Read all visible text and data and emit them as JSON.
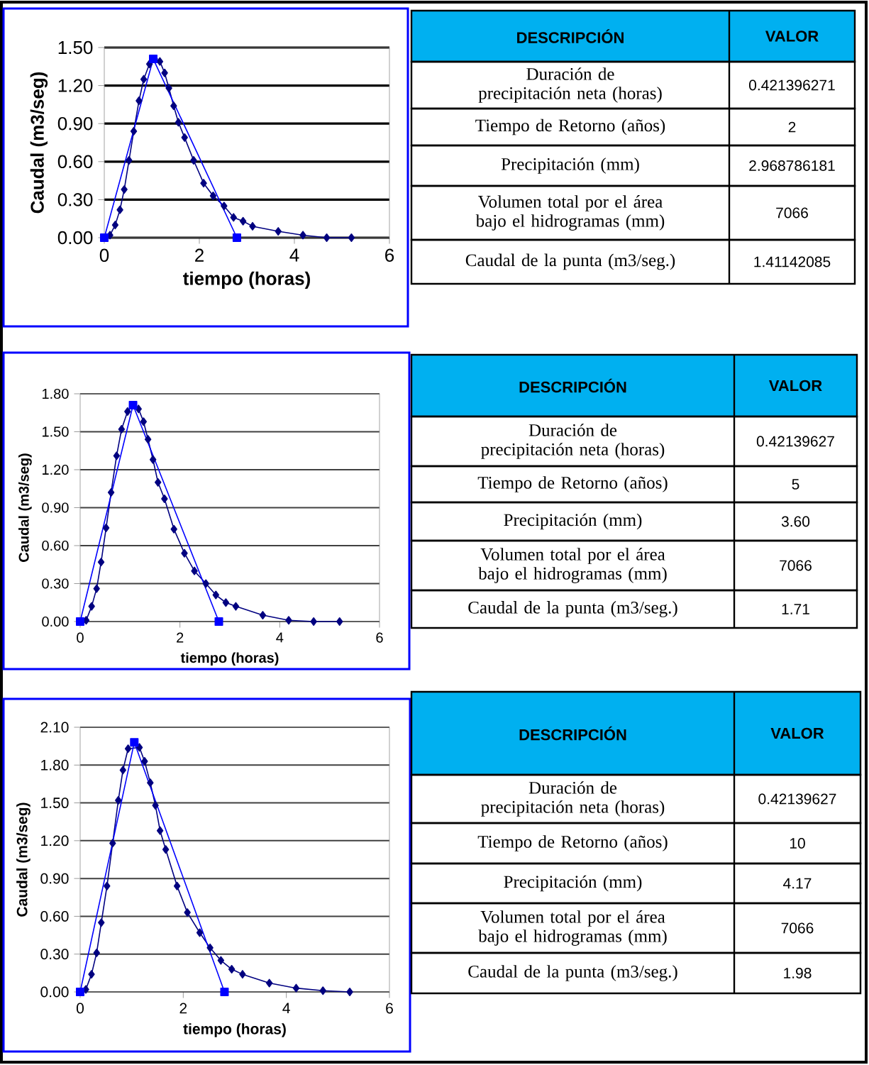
{
  "chart_data": [
    {
      "type": "line",
      "xlabel": "tiempo (horas)",
      "ylabel": "Caudal (m3/seg)",
      "xlim": [
        0,
        6
      ],
      "ylim": [
        0,
        1.5
      ],
      "xticks": [
        0,
        2,
        4,
        6
      ],
      "yticks": [
        {
          "value": 0,
          "label": "0.00"
        },
        {
          "value": 0.3,
          "label": "0.30"
        },
        {
          "value": 0.6,
          "label": "0.60"
        },
        {
          "value": 0.9,
          "label": "0.90"
        },
        {
          "value": 1.2,
          "label": "1.20"
        },
        {
          "value": 1.5,
          "label": "1.50"
        }
      ],
      "grid": "y",
      "series": [
        {
          "color": "#000080",
          "marker": "diamond",
          "x": [
            0,
            0.12,
            0.23,
            0.33,
            0.42,
            0.52,
            0.62,
            0.73,
            0.83,
            0.95,
            1.06,
            1.17,
            1.27,
            1.36,
            1.46,
            1.56,
            1.69,
            1.88,
            2.09,
            2.29,
            2.52,
            2.72,
            2.92,
            3.12,
            3.66,
            4.18,
            4.68,
            5.2
          ],
          "values": [
            0,
            0.02,
            0.1,
            0.22,
            0.38,
            0.61,
            0.84,
            1.08,
            1.25,
            1.37,
            1.41,
            1.39,
            1.3,
            1.18,
            1.04,
            0.91,
            0.79,
            0.61,
            0.43,
            0.33,
            0.25,
            0.16,
            0.13,
            0.09,
            0.05,
            0.02,
            0,
            0
          ]
        },
        {
          "color": "#0000ff",
          "marker": "square",
          "x": [
            0,
            1.03,
            2.79
          ],
          "values": [
            0,
            1.41,
            0
          ]
        }
      ]
    },
    {
      "type": "other",
      "color": "#00b0f0",
      "annotations": [
        "DESCRIPCIÓN",
        "VALOR"
      ],
      "categories": [
        "Duración de precipitación neta (horas)",
        "Tiempo de Retorno (años)",
        "Precipitación (mm)",
        "Volumen total  por el área bajo el hidrogramas (mm)",
        "Caudal de la punta (m3/seg.)"
      ],
      "value_labels": [
        "0.421396271",
        "2",
        "2.968786181",
        "7066",
        "1.41142085"
      ]
    },
    {
      "type": "line",
      "xlabel": "tiempo (horas)",
      "ylabel": "Caudal (m3/seg)",
      "xlim": [
        0,
        6
      ],
      "ylim": [
        0,
        1.8
      ],
      "xticks": [
        0,
        2,
        4,
        6
      ],
      "yticks": [
        {
          "value": 0,
          "label": "0.00"
        },
        {
          "value": 0.3,
          "label": "0.30"
        },
        {
          "value": 0.6,
          "label": "0.60"
        },
        {
          "value": 0.9,
          "label": "0.90"
        },
        {
          "value": 1.2,
          "label": "1.20"
        },
        {
          "value": 1.5,
          "label": "1.50"
        },
        {
          "value": 1.8,
          "label": "1.80"
        }
      ],
      "grid": "y",
      "series": [
        {
          "color": "#000080",
          "marker": "diamond",
          "x": [
            0,
            0.12,
            0.23,
            0.33,
            0.42,
            0.52,
            0.62,
            0.73,
            0.83,
            0.95,
            1.06,
            1.17,
            1.27,
            1.36,
            1.46,
            1.56,
            1.69,
            1.88,
            2.09,
            2.29,
            2.52,
            2.72,
            2.92,
            3.12,
            3.66,
            4.18,
            4.68,
            5.2
          ],
          "values": [
            0,
            0.01,
            0.12,
            0.26,
            0.47,
            0.74,
            1.02,
            1.31,
            1.52,
            1.66,
            1.71,
            1.68,
            1.58,
            1.44,
            1.28,
            1.1,
            0.97,
            0.73,
            0.54,
            0.4,
            0.3,
            0.21,
            0.15,
            0.12,
            0.05,
            0.01,
            0,
            0
          ]
        },
        {
          "color": "#0000ff",
          "marker": "square",
          "x": [
            0,
            1.06,
            2.78
          ],
          "values": [
            0,
            1.71,
            0
          ]
        }
      ]
    },
    {
      "type": "other",
      "color": "#00b0f0",
      "annotations": [
        "DESCRIPCIÓN",
        "VALOR"
      ],
      "categories": [
        "Duración de precipitación neta (horas)",
        "Tiempo de Retorno (años)",
        "Precipitación (mm)",
        "Volumen total  por el área bajo el hidrogramas (mm)",
        "Caudal de la punta (m3/seg.)"
      ],
      "value_labels": [
        "0.42139627",
        "5",
        "3.60",
        "7066",
        "1.71"
      ]
    },
    {
      "type": "line",
      "xlabel": "tiempo (horas)",
      "ylabel": "Caudal (m3/seg)",
      "xlim": [
        0,
        6
      ],
      "ylim": [
        0,
        2.1
      ],
      "xticks": [
        0,
        2,
        4,
        6
      ],
      "yticks": [
        {
          "value": 0,
          "label": "0.00"
        },
        {
          "value": 0.3,
          "label": "0.30"
        },
        {
          "value": 0.6,
          "label": "0.60"
        },
        {
          "value": 0.9,
          "label": "0.90"
        },
        {
          "value": 1.2,
          "label": "1.20"
        },
        {
          "value": 1.5,
          "label": "1.50"
        },
        {
          "value": 1.8,
          "label": "1.80"
        },
        {
          "value": 2.1,
          "label": "2.10"
        }
      ],
      "grid": "y",
      "series": [
        {
          "color": "#000080",
          "marker": "diamond",
          "x": [
            0,
            0.11,
            0.22,
            0.32,
            0.41,
            0.52,
            0.63,
            0.74,
            0.83,
            0.93,
            1.05,
            1.15,
            1.25,
            1.36,
            1.46,
            1.55,
            1.66,
            1.88,
            2.08,
            2.32,
            2.52,
            2.73,
            2.94,
            3.15,
            3.67,
            4.19,
            4.71,
            5.23
          ],
          "values": [
            0,
            0.02,
            0.14,
            0.31,
            0.55,
            0.84,
            1.18,
            1.52,
            1.76,
            1.93,
            null,
            1.94,
            1.83,
            1.66,
            1.48,
            1.28,
            1.13,
            0.84,
            0.63,
            0.47,
            0.35,
            0.25,
            0.18,
            0.14,
            0.07,
            0.03,
            0.01,
            0
          ]
        },
        {
          "color": "#0000ff",
          "marker": "square",
          "x": [
            0,
            1.05,
            2.8
          ],
          "values": [
            0,
            1.98,
            0
          ]
        }
      ]
    },
    {
      "type": "other",
      "color": "#00b0f0",
      "annotations": [
        "DESCRIPCIÓN",
        "VALOR"
      ],
      "categories": [
        "Duración de precipitación neta (horas)",
        "Tiempo de Retorno (años)",
        "Precipitación (mm)",
        "Volumen total  por el área bajo el hidrogramas (mm)",
        "Caudal de la punta (m3/seg.)"
      ],
      "value_labels": [
        "0.42139627",
        "10",
        "4.17",
        "7066",
        "1.98"
      ]
    }
  ]
}
